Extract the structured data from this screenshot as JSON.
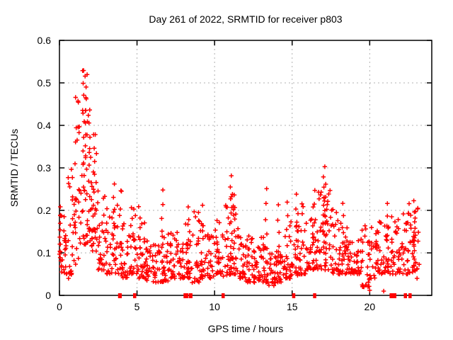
{
  "chart_data": {
    "type": "scatter",
    "title": "Day 261 of 2022, SRMTID for receiver p803",
    "xlabel": "GPS time / hours",
    "ylabel": "SRMTID / TECUs",
    "xlim": [
      0,
      24
    ],
    "ylim": [
      0,
      0.6
    ],
    "x_ticks": {
      "values": [
        0,
        5,
        10,
        15,
        20
      ],
      "labels": [
        "0",
        "5",
        "10",
        "15",
        "20"
      ]
    },
    "y_ticks": {
      "values": [
        0,
        0.1,
        0.2,
        0.3,
        0.4,
        0.5,
        0.6
      ],
      "labels": [
        "0",
        "0.1",
        "0.2",
        "0.3",
        "0.4",
        "0.5",
        "0.6"
      ]
    },
    "grid": true,
    "legend": "none",
    "marker": {
      "shape": "plus",
      "color": "#ff0000",
      "size": 7
    },
    "axis_color": "#000000",
    "grid_color": "#b0b0b0",
    "background": "#ffffff",
    "peak_annotation": {
      "max_value": 0.53,
      "max_at_hour": 1.55
    },
    "scatter": {
      "seed": 20220261,
      "bins_format": [
        "x_start",
        "x_end",
        "count",
        "y_min",
        "y_max",
        "skew_power"
      ],
      "bins": [
        [
          0.0,
          0.5,
          26,
          0.05,
          0.21,
          1.6
        ],
        [
          0.5,
          1.0,
          26,
          0.04,
          0.3,
          2
        ],
        [
          1.0,
          1.5,
          30,
          0.07,
          0.47,
          1.4
        ],
        [
          1.5,
          2.0,
          32,
          0.12,
          0.53,
          1.4
        ],
        [
          2.0,
          2.5,
          30,
          0.09,
          0.38,
          1.6
        ],
        [
          2.5,
          3.0,
          26,
          0.06,
          0.25,
          1.8
        ],
        [
          3.0,
          3.5,
          24,
          0.05,
          0.22,
          1.8
        ],
        [
          3.5,
          4.0,
          24,
          0.05,
          0.26,
          2
        ],
        [
          4.0,
          4.5,
          24,
          0.04,
          0.17,
          1.8
        ],
        [
          4.5,
          5.0,
          24,
          0.05,
          0.21,
          2
        ],
        [
          5.0,
          5.5,
          24,
          0.04,
          0.18,
          2
        ],
        [
          5.5,
          6.0,
          24,
          0.03,
          0.13,
          1.6
        ],
        [
          6.0,
          6.5,
          24,
          0.03,
          0.12,
          1.6
        ],
        [
          6.5,
          7.0,
          24,
          0.03,
          0.14,
          1.6
        ],
        [
          7.0,
          7.5,
          24,
          0.04,
          0.15,
          1.8
        ],
        [
          7.5,
          8.0,
          24,
          0.04,
          0.15,
          1.8
        ],
        [
          8.0,
          8.5,
          24,
          0.04,
          0.18,
          1.8
        ],
        [
          8.5,
          9.0,
          22,
          0.03,
          0.2,
          2
        ],
        [
          9.0,
          9.5,
          22,
          0.04,
          0.18,
          2
        ],
        [
          9.5,
          10.0,
          22,
          0.04,
          0.15,
          1.8
        ],
        [
          10.0,
          10.5,
          24,
          0.05,
          0.18,
          1.8
        ],
        [
          10.5,
          11.0,
          24,
          0.04,
          0.22,
          2
        ],
        [
          11.0,
          11.5,
          26,
          0.05,
          0.24,
          2
        ],
        [
          11.5,
          12.0,
          24,
          0.04,
          0.16,
          1.8
        ],
        [
          12.0,
          12.5,
          24,
          0.03,
          0.14,
          1.6
        ],
        [
          12.5,
          13.0,
          26,
          0.03,
          0.12,
          1.5
        ],
        [
          13.0,
          13.5,
          24,
          0.03,
          0.14,
          1.8
        ],
        [
          13.5,
          14.0,
          24,
          0.02,
          0.1,
          1.5
        ],
        [
          14.0,
          14.5,
          24,
          0.03,
          0.12,
          1.6
        ],
        [
          14.5,
          15.0,
          24,
          0.04,
          0.18,
          2
        ],
        [
          15.0,
          15.5,
          24,
          0.05,
          0.2,
          2
        ],
        [
          15.5,
          16.0,
          24,
          0.05,
          0.22,
          2
        ],
        [
          16.0,
          16.5,
          24,
          0.06,
          0.24,
          2
        ],
        [
          16.5,
          17.0,
          26,
          0.06,
          0.26,
          1.8
        ],
        [
          17.0,
          17.5,
          26,
          0.06,
          0.26,
          1.8
        ],
        [
          17.5,
          18.0,
          24,
          0.05,
          0.22,
          2
        ],
        [
          18.0,
          18.5,
          24,
          0.05,
          0.18,
          1.8
        ],
        [
          18.5,
          19.0,
          24,
          0.05,
          0.16,
          1.8
        ],
        [
          19.0,
          19.5,
          24,
          0.05,
          0.16,
          1.8
        ],
        [
          19.5,
          20.0,
          24,
          0.02,
          0.17,
          1.8
        ],
        [
          20.0,
          20.5,
          24,
          0.04,
          0.16,
          1.8
        ],
        [
          20.5,
          21.0,
          24,
          0.05,
          0.18,
          1.8
        ],
        [
          21.0,
          21.5,
          24,
          0.05,
          0.19,
          1.8
        ],
        [
          21.5,
          22.0,
          24,
          0.05,
          0.18,
          1.8
        ],
        [
          22.0,
          22.5,
          26,
          0.05,
          0.2,
          1.8
        ],
        [
          22.5,
          23.0,
          28,
          0.05,
          0.22,
          1.6
        ],
        [
          23.0,
          23.3,
          6,
          0.04,
          0.21,
          1.5
        ]
      ],
      "spikes_format": [
        "x",
        "y_min",
        "y_max",
        "count"
      ],
      "spikes": [
        [
          0.05,
          0.08,
          0.21,
          8
        ],
        [
          1.55,
          0.25,
          0.53,
          10
        ],
        [
          1.7,
          0.3,
          0.49,
          8
        ],
        [
          1.9,
          0.2,
          0.44,
          8
        ],
        [
          2.2,
          0.15,
          0.38,
          8
        ],
        [
          3.55,
          0.08,
          0.26,
          7
        ],
        [
          5.15,
          0.06,
          0.21,
          7
        ],
        [
          6.65,
          0.05,
          0.25,
          7
        ],
        [
          8.35,
          0.05,
          0.21,
          6
        ],
        [
          9.2,
          0.06,
          0.21,
          5
        ],
        [
          11.05,
          0.06,
          0.28,
          9
        ],
        [
          11.3,
          0.06,
          0.24,
          7
        ],
        [
          13.3,
          0.04,
          0.25,
          7
        ],
        [
          14.1,
          0.05,
          0.21,
          6
        ],
        [
          14.65,
          0.05,
          0.22,
          6
        ],
        [
          15.3,
          0.05,
          0.24,
          6
        ],
        [
          16.4,
          0.06,
          0.25,
          6
        ],
        [
          17.05,
          0.1,
          0.3,
          10
        ],
        [
          17.2,
          0.08,
          0.26,
          7
        ],
        [
          18.3,
          0.06,
          0.22,
          6
        ],
        [
          21.15,
          0.06,
          0.215,
          7
        ],
        [
          22.9,
          0.06,
          0.22,
          8
        ]
      ],
      "outliers": [
        [
          20.0,
          0.012
        ],
        [
          20.9,
          0.01
        ],
        [
          23.05,
          0.04
        ],
        [
          23.1,
          0.205
        ]
      ]
    },
    "zero_markers": {
      "color": "#ff0000",
      "format": [
        "x_hour",
        "half_width_hours"
      ],
      "xs": [
        [
          3.9,
          0.12
        ],
        [
          4.85,
          0.1
        ],
        [
          8.15,
          0.15
        ],
        [
          8.45,
          0.12
        ],
        [
          10.55,
          0.08
        ],
        [
          15.1,
          0.1
        ],
        [
          16.45,
          0.05
        ],
        [
          21.5,
          0.22
        ],
        [
          22.3,
          0.05
        ],
        [
          22.6,
          0.08
        ]
      ]
    }
  }
}
